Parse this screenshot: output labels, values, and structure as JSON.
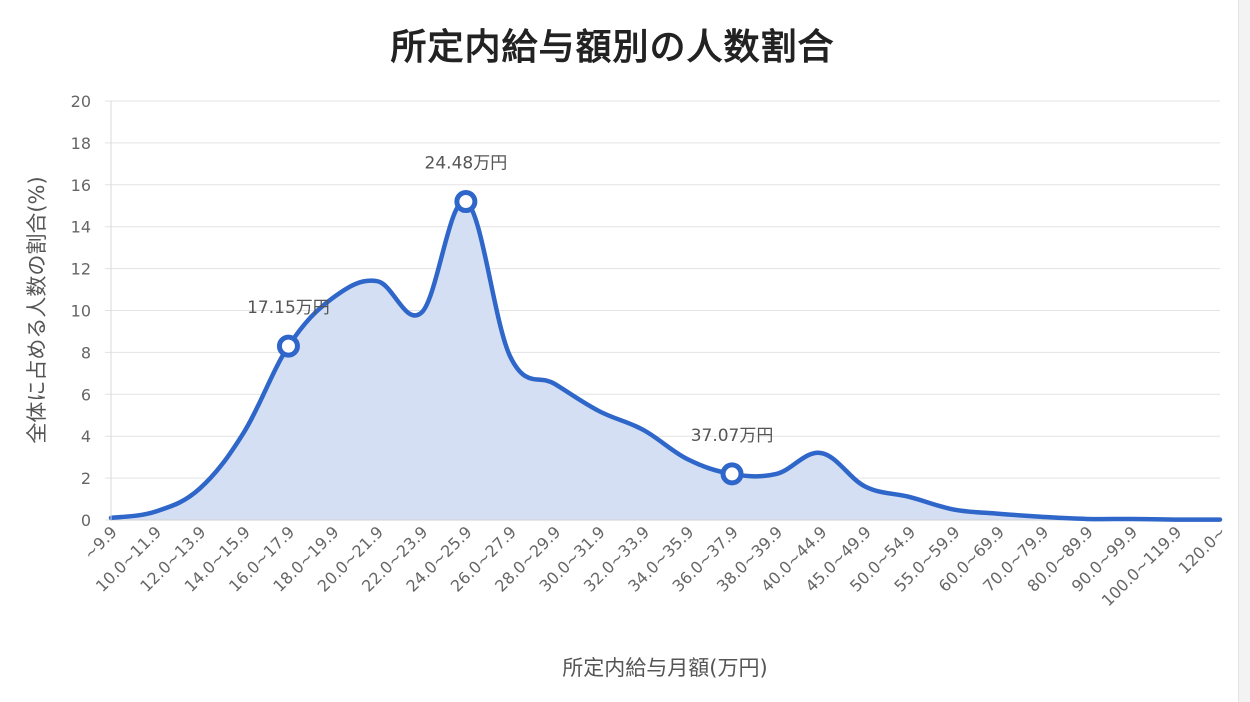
{
  "chart_data": {
    "type": "area",
    "title": "所定内給与額別の人数割合",
    "xlabel": "所定内給与月額(万円)",
    "ylabel": "全体に占める人数の割合(%)",
    "ylim": [
      0,
      20
    ],
    "yticks": [
      0,
      2,
      4,
      6,
      8,
      10,
      12,
      14,
      16,
      18,
      20
    ],
    "grid": true,
    "categories": [
      "~9.9",
      "10.0~11.9",
      "12.0~13.9",
      "14.0~15.9",
      "16.0~17.9",
      "18.0~19.9",
      "20.0~21.9",
      "22.0~23.9",
      "24.0~25.9",
      "26.0~27.9",
      "28.0~29.9",
      "30.0~31.9",
      "32.0~33.9",
      "34.0~35.9",
      "36.0~37.9",
      "38.0~39.9",
      "40.0~44.9",
      "45.0~49.9",
      "50.0~54.9",
      "55.0~59.9",
      "60.0~69.9",
      "70.0~79.9",
      "80.0~89.9",
      "90.0~99.9",
      "100.0~119.9",
      "120.0~"
    ],
    "values": [
      0.1,
      0.4,
      1.5,
      4.2,
      8.3,
      10.6,
      11.4,
      9.9,
      15.2,
      7.8,
      6.5,
      5.2,
      4.3,
      2.9,
      2.2,
      2.2,
      3.2,
      1.6,
      1.1,
      0.5,
      0.3,
      0.15,
      0.05,
      0.05,
      0.02,
      0.02
    ],
    "series_color": "#2f66c9",
    "fill_color": "#d4dff3",
    "annotations": [
      {
        "category_index": 4,
        "label": "17.15万円"
      },
      {
        "category_index": 8,
        "label": "24.48万円"
      },
      {
        "category_index": 14,
        "label": "37.07万円"
      }
    ]
  }
}
